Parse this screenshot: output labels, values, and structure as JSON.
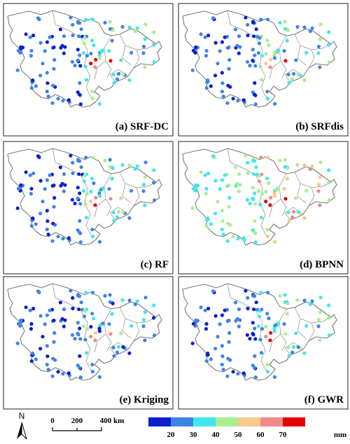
{
  "panels": [
    {
      "label": "(a) SRF-DC"
    },
    {
      "label": "(b) SRFdis"
    },
    {
      "label": "(c) RF"
    },
    {
      "label": "(d) BPNN"
    },
    {
      "label": "(e) Kriging"
    },
    {
      "label": "(f) GWR"
    }
  ],
  "north_arrow": {
    "label": "N"
  },
  "scale_bar": {
    "ticks": [
      "0",
      "200",
      "400 km"
    ]
  },
  "legend": {
    "colors": [
      "#0b1fcf",
      "#3f83e6",
      "#3fe8ee",
      "#a9ef91",
      "#f6c98a",
      "#ef8a8a",
      "#e60000"
    ],
    "tick_labels": [
      "20",
      "30",
      "40",
      "50",
      "60",
      "70"
    ],
    "unit": "mm"
  }
}
